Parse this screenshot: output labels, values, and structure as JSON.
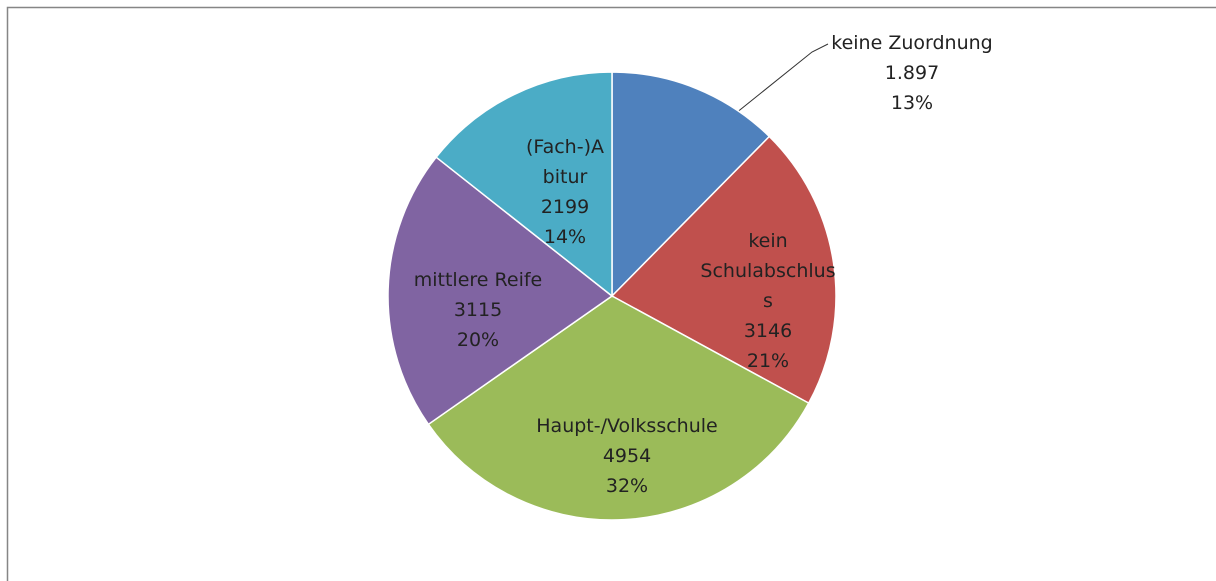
{
  "chart_data": {
    "type": "pie",
    "categories": [
      "keine Zuordnung",
      "kein Schulabschluss",
      "Haupt-/Volksschule",
      "mittlere Reife",
      "(Fach-)Abitur"
    ],
    "values": [
      1897,
      3146,
      4954,
      3115,
      2199
    ],
    "value_labels": [
      "1.897",
      "3146",
      "4954",
      "3115",
      "2199"
    ],
    "percent_labels": [
      "13%",
      "21%",
      "32%",
      "20%",
      "14%"
    ],
    "colors": [
      "#4f81bd",
      "#c0504d",
      "#9bbb59",
      "#8064a2",
      "#4bacc6"
    ]
  }
}
